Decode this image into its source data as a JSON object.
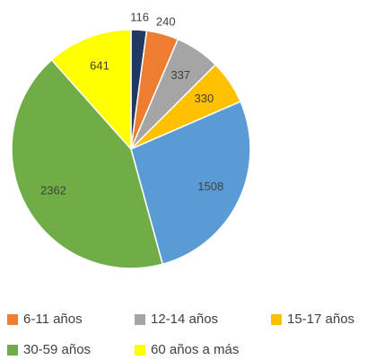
{
  "chart_data": {
    "type": "pie",
    "categories": [
      null,
      "6-11 años",
      "12-14 años",
      "15-17 años",
      null,
      "30-59 años",
      "60 años a más"
    ],
    "values": [
      116,
      240,
      337,
      330,
      1508,
      2362,
      641
    ],
    "colors": [
      "#203864",
      "#ed7d31",
      "#a5a5a5",
      "#ffc000",
      "#5b9bd5",
      "#70ad47",
      "#ffff00"
    ]
  }
}
